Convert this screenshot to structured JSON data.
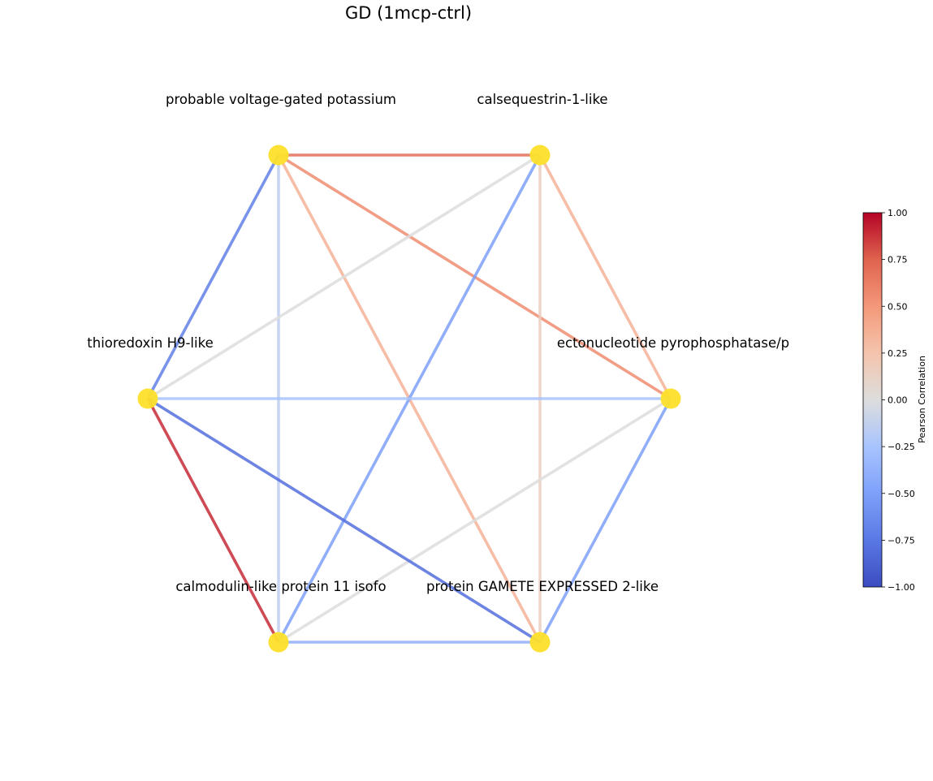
{
  "title": "GD (1mcp-ctrl)",
  "node_color": "#fde02a",
  "nodes": [
    {
      "id": "kv",
      "label": "probable voltage-gated potassium"
    },
    {
      "id": "casq",
      "label": "calsequestrin-1-like"
    },
    {
      "id": "enpp",
      "label": "ectonucleotide pyrophosphatase/p"
    },
    {
      "id": "gex",
      "label": "protein GAMETE EXPRESSED 2-like"
    },
    {
      "id": "cml",
      "label": "calmodulin-like protein 11 isofo"
    },
    {
      "id": "trx",
      "label": "thioredoxin H9-like"
    }
  ],
  "edges": [
    {
      "source": "kv",
      "target": "casq",
      "value": 0.7
    },
    {
      "source": "kv",
      "target": "enpp",
      "value": 0.55
    },
    {
      "source": "kv",
      "target": "gex",
      "value": 0.35
    },
    {
      "source": "kv",
      "target": "cml",
      "value": -0.15
    },
    {
      "source": "kv",
      "target": "trx",
      "value": -0.7
    },
    {
      "source": "casq",
      "target": "enpp",
      "value": 0.35
    },
    {
      "source": "casq",
      "target": "gex",
      "value": 0.15
    },
    {
      "source": "casq",
      "target": "cml",
      "value": -0.5
    },
    {
      "source": "casq",
      "target": "trx",
      "value": 0.0
    },
    {
      "source": "enpp",
      "target": "gex",
      "value": -0.5
    },
    {
      "source": "enpp",
      "target": "cml",
      "value": 0.0
    },
    {
      "source": "enpp",
      "target": "trx",
      "value": -0.25
    },
    {
      "source": "gex",
      "target": "cml",
      "value": -0.4
    },
    {
      "source": "gex",
      "target": "trx",
      "value": -0.8
    },
    {
      "source": "cml",
      "target": "trx",
      "value": 0.9
    }
  ],
  "colorbar": {
    "label": "Pearson Correlation",
    "min": -1.0,
    "max": 1.0,
    "ticks": [
      "1.00",
      "0.75",
      "0.50",
      "0.25",
      "0.00",
      "−0.25",
      "−0.50",
      "−0.75",
      "−1.00"
    ],
    "colormap": "coolwarm"
  }
}
